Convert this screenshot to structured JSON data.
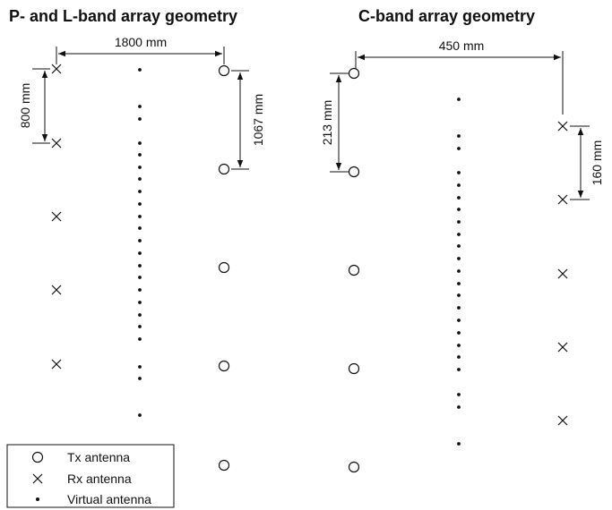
{
  "titles": {
    "left": "P- and L-band array geometry",
    "right": "C-band array geometry"
  },
  "dimensions": {
    "left_tx_rx_spacing": "1800 mm",
    "left_rx_spacing": "800 mm",
    "left_tx_spacing": "1067 mm",
    "right_tx_rx_spacing": "450  mm",
    "right_tx_spacing": "213 mm",
    "right_rx_spacing": "160 mm"
  },
  "legend": {
    "tx": "Tx antenna",
    "rx": "Rx antenna",
    "virtual": "Virtual antenna"
  },
  "arrays": {
    "pl": {
      "tx_count": 5,
      "rx_count": 5,
      "virtual_count": 25
    },
    "c": {
      "tx_count": 5,
      "rx_count": 5,
      "virtual_count": 25
    }
  },
  "colors": {
    "ink": "#111111",
    "background": "#ffffff"
  }
}
